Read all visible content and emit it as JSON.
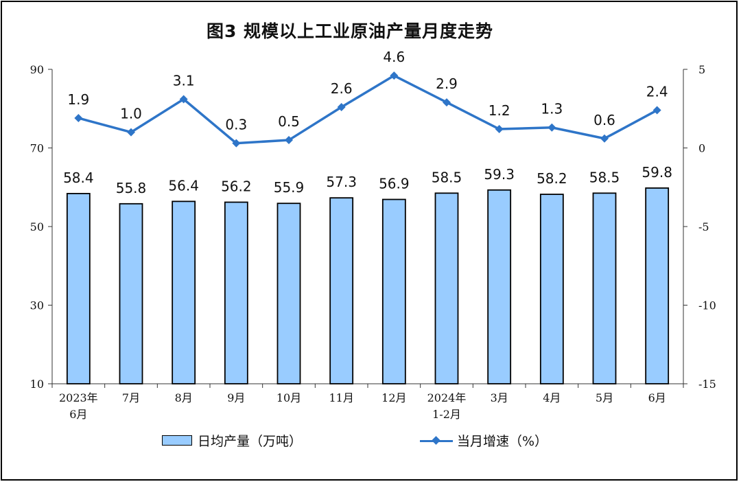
{
  "chart_data": {
    "type": "bar+line",
    "title": "图3  规模以上工业原油产量月度走势",
    "categories": [
      [
        "2023年",
        "6月"
      ],
      [
        "7月"
      ],
      [
        "8月"
      ],
      [
        "9月"
      ],
      [
        "10月"
      ],
      [
        "11月"
      ],
      [
        "12月"
      ],
      [
        "2024年",
        "1-2月"
      ],
      [
        "3月"
      ],
      [
        "4月"
      ],
      [
        "5月"
      ],
      [
        "6月"
      ]
    ],
    "series": [
      {
        "name": "日均产量（万吨）",
        "type": "bar",
        "axis": "left",
        "color": "#99ccff",
        "values": [
          58.4,
          55.8,
          56.4,
          56.2,
          55.9,
          57.3,
          56.9,
          58.5,
          59.3,
          58.2,
          58.5,
          59.8
        ]
      },
      {
        "name": "当月增速（%）",
        "type": "line",
        "axis": "right",
        "color": "#2e75c8",
        "values": [
          1.9,
          1.0,
          3.1,
          0.3,
          0.5,
          2.6,
          4.6,
          2.9,
          1.2,
          1.3,
          0.6,
          2.4
        ]
      }
    ],
    "y_left": {
      "min": 10,
      "max": 90,
      "ticks": [
        10,
        30,
        50,
        70,
        90
      ]
    },
    "y_right": {
      "min": -15,
      "max": 5,
      "ticks": [
        -15,
        -10,
        -5,
        0,
        5
      ]
    },
    "legend_position": "bottom"
  }
}
